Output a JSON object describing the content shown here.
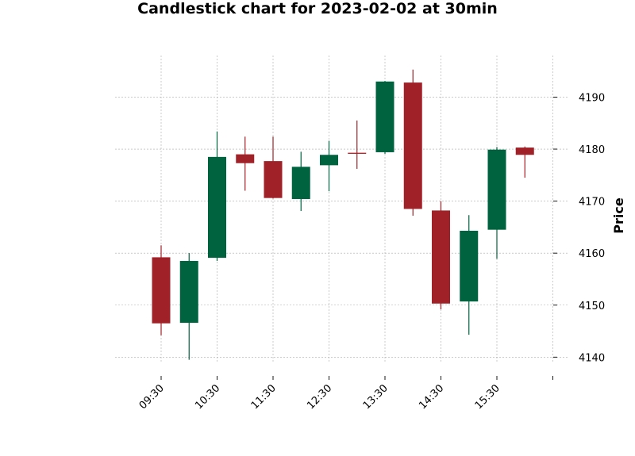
{
  "chart_data": {
    "type": "candlestick",
    "title": "Candlestick chart for 2023-02-02 at 30min",
    "xlabel": "",
    "ylabel": "Price",
    "ylim": [
      4137,
      4198
    ],
    "yticks": [
      4140,
      4150,
      4160,
      4170,
      4180,
      4190
    ],
    "xticks": [
      "09:30",
      "10:30",
      "11:30",
      "12:30",
      "13:30",
      "14:30",
      "15:30",
      ""
    ],
    "grid": true,
    "colors": {
      "up": "#006340",
      "down": "#a02128",
      "grid": "#a9a9a9"
    },
    "candles": [
      {
        "time": "09:30",
        "open": 4159.2,
        "high": 4161.5,
        "low": 4144.2,
        "close": 4146.5
      },
      {
        "time": "10:00",
        "open": 4146.6,
        "high": 4160.0,
        "low": 4139.5,
        "close": 4158.5
      },
      {
        "time": "10:30",
        "open": 4159.1,
        "high": 4183.4,
        "low": 4158.5,
        "close": 4178.5
      },
      {
        "time": "11:00",
        "open": 4179.0,
        "high": 4182.4,
        "low": 4172.0,
        "close": 4177.3
      },
      {
        "time": "11:30",
        "open": 4177.7,
        "high": 4182.4,
        "low": 4170.5,
        "close": 4170.6
      },
      {
        "time": "12:00",
        "open": 4170.4,
        "high": 4179.5,
        "low": 4168.1,
        "close": 4176.6
      },
      {
        "time": "12:30",
        "open": 4176.9,
        "high": 4181.6,
        "low": 4171.9,
        "close": 4178.9
      },
      {
        "time": "13:00",
        "open": 4179.3,
        "high": 4185.5,
        "low": 4176.2,
        "close": 4179.1
      },
      {
        "time": "13:30",
        "open": 4179.4,
        "high": 4193.1,
        "low": 4179.1,
        "close": 4193.0
      },
      {
        "time": "14:00",
        "open": 4192.8,
        "high": 4195.3,
        "low": 4167.2,
        "close": 4168.5
      },
      {
        "time": "14:30",
        "open": 4168.2,
        "high": 4170.0,
        "low": 4149.2,
        "close": 4150.3
      },
      {
        "time": "15:00",
        "open": 4150.7,
        "high": 4167.3,
        "low": 4144.3,
        "close": 4164.3
      },
      {
        "time": "15:30",
        "open": 4164.5,
        "high": 4180.4,
        "low": 4158.9,
        "close": 4179.9
      },
      {
        "time": "16:00",
        "open": 4180.3,
        "high": 4180.5,
        "low": 4174.5,
        "close": 4178.9
      }
    ]
  }
}
